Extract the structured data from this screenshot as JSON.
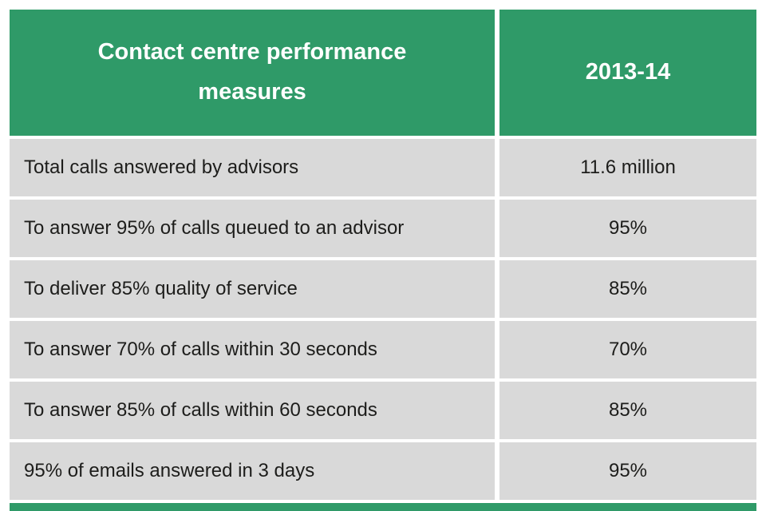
{
  "table": {
    "header": {
      "measures_label": "Contact centre performance measures",
      "year_label": "2013-14"
    },
    "rows": [
      {
        "label": "Total calls answered by advisors",
        "value": "11.6 million"
      },
      {
        "label": "To answer 95% of calls queued to an advisor",
        "value": "95%"
      },
      {
        "label": "To deliver 85% quality of service",
        "value": "85%"
      },
      {
        "label": "To answer 70% of calls within 30 seconds",
        "value": "70%"
      },
      {
        "label": "To answer 85% of calls within 60 seconds",
        "value": "85%"
      },
      {
        "label": "95% of emails answered in 3 days",
        "value": "95%"
      }
    ]
  },
  "colors": {
    "header_green": "#2f9a68",
    "row_gray": "#d9d9d9",
    "header_text": "#ffffff",
    "body_text": "#1d1d1b"
  },
  "chart_data": {
    "type": "table",
    "title": "Contact centre performance measures",
    "columns": [
      "Contact centre performance measures",
      "2013-14"
    ],
    "rows": [
      [
        "Total calls answered by advisors",
        "11.6 million"
      ],
      [
        "To answer 95% of calls queued to an advisor",
        "95%"
      ],
      [
        "To deliver 85% quality of service",
        "85%"
      ],
      [
        "To answer 70% of calls within 30 seconds",
        "70%"
      ],
      [
        "To answer 85% of calls within 60 seconds",
        "85%"
      ],
      [
        "95% of emails answered in 3 days",
        "95%"
      ]
    ]
  }
}
